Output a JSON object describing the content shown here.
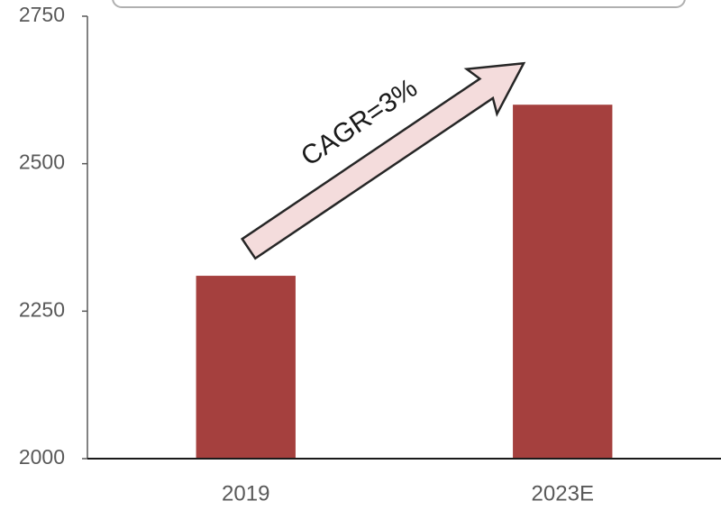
{
  "chart_data": {
    "type": "bar",
    "categories": [
      "2019",
      "2023E"
    ],
    "values": [
      2310,
      2600
    ],
    "color": "#a5403e",
    "ylim": [
      2000,
      2750
    ],
    "yticks": [
      2000,
      2250,
      2500,
      2750
    ],
    "annotation": "CAGR=3%"
  }
}
